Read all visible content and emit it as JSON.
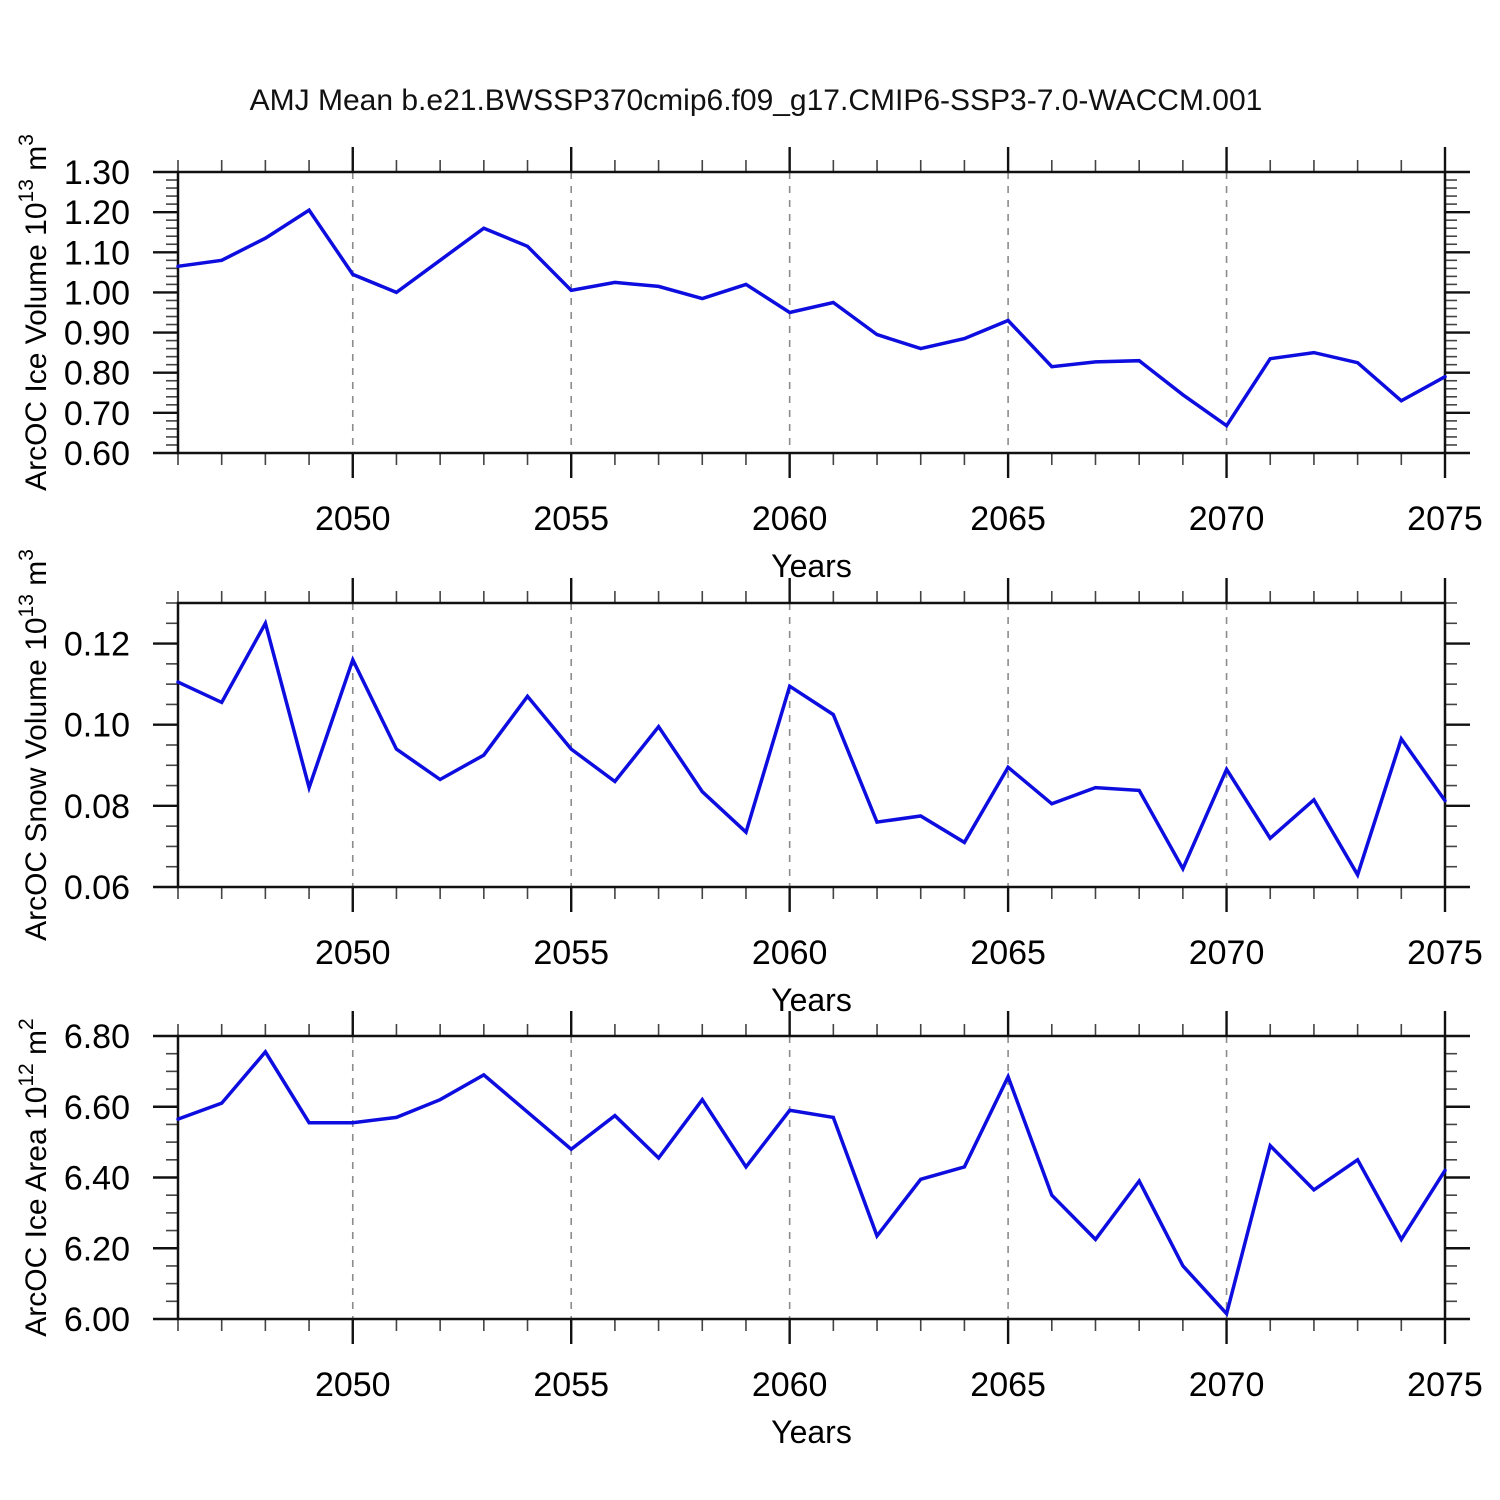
{
  "title": "AMJ Mean b.e21.BWSSP370cmip6.f09_g17.CMIP6-SSP3-7.0-WACCM.001",
  "xlabel": "Years",
  "colors": {
    "line": "#0d0de0",
    "axis": "#111111",
    "minor_tick": "#444444",
    "grid": "#8c8c8c",
    "text": "#000000"
  },
  "x_tick_labels": [
    "2050",
    "2055",
    "2060",
    "2065",
    "2070",
    "2075"
  ],
  "x_tick_values": [
    2050,
    2055,
    2060,
    2065,
    2070,
    2075
  ],
  "gridline_years": [
    2050,
    2055,
    2060,
    2065,
    2070
  ],
  "chart_data": [
    {
      "type": "line",
      "name": "arcoc-ice-volume",
      "ylabel_prefix": "ArcOC Ice Volume 10",
      "ylabel_exp": "13",
      "ylabel_unit": " m",
      "ylabel_unit_exp": "3",
      "xlabel": "Years",
      "x": [
        2046,
        2047,
        2048,
        2049,
        2050,
        2051,
        2052,
        2053,
        2054,
        2055,
        2056,
        2057,
        2058,
        2059,
        2060,
        2061,
        2062,
        2063,
        2064,
        2065,
        2066,
        2067,
        2068,
        2069,
        2070,
        2071,
        2072,
        2073,
        2074,
        2075
      ],
      "values": [
        1.065,
        1.08,
        1.135,
        1.205,
        1.045,
        1.0,
        1.08,
        1.16,
        1.115,
        1.005,
        1.025,
        1.015,
        0.985,
        1.02,
        0.95,
        0.975,
        0.895,
        0.86,
        0.885,
        0.93,
        0.815,
        0.827,
        0.83,
        0.745,
        0.668,
        0.835,
        0.85,
        0.825,
        0.73,
        0.79
      ],
      "ylim": [
        0.6,
        1.3
      ],
      "ytick_values": [
        0.6,
        0.7,
        0.8,
        0.9,
        1.0,
        1.1,
        1.2,
        1.3
      ],
      "ytick_labels": [
        "0.60",
        "0.70",
        "0.80",
        "0.90",
        "1.00",
        "1.10",
        "1.20",
        "1.30"
      ],
      "yminor_step": 0.02,
      "xlim": [
        2046,
        2075
      ]
    },
    {
      "type": "line",
      "name": "arcoc-snow-volume",
      "ylabel_prefix": "ArcOC Snow Volume 10",
      "ylabel_exp": "13",
      "ylabel_unit": " m",
      "ylabel_unit_exp": "3",
      "xlabel": "Years",
      "x": [
        2046,
        2047,
        2048,
        2049,
        2050,
        2051,
        2052,
        2053,
        2054,
        2055,
        2056,
        2057,
        2058,
        2059,
        2060,
        2061,
        2062,
        2063,
        2064,
        2065,
        2066,
        2067,
        2068,
        2069,
        2070,
        2071,
        2072,
        2073,
        2074,
        2075
      ],
      "values": [
        0.1105,
        0.1055,
        0.125,
        0.0845,
        0.116,
        0.094,
        0.0865,
        0.0925,
        0.107,
        0.094,
        0.086,
        0.0995,
        0.0835,
        0.0735,
        0.1095,
        0.1025,
        0.076,
        0.0775,
        0.071,
        0.0895,
        0.0805,
        0.0845,
        0.0838,
        0.0645,
        0.089,
        0.072,
        0.0815,
        0.063,
        0.0965,
        0.0813
      ],
      "ylim": [
        0.06,
        0.13
      ],
      "ytick_values": [
        0.06,
        0.08,
        0.1,
        0.12
      ],
      "ytick_labels": [
        "0.06",
        "0.08",
        "0.10",
        "0.12"
      ],
      "yminor_step": 0.005,
      "xlim": [
        2046,
        2075
      ]
    },
    {
      "type": "line",
      "name": "arcoc-ice-area",
      "ylabel_prefix": "ArcOC Ice Area 10",
      "ylabel_exp": "12",
      "ylabel_unit": " m",
      "ylabel_unit_exp": "2",
      "xlabel": "Years",
      "x": [
        2046,
        2047,
        2048,
        2049,
        2050,
        2051,
        2052,
        2053,
        2054,
        2055,
        2056,
        2057,
        2058,
        2059,
        2060,
        2061,
        2062,
        2063,
        2064,
        2065,
        2066,
        2067,
        2068,
        2069,
        2070,
        2071,
        2072,
        2073,
        2074,
        2075
      ],
      "values": [
        6.565,
        6.61,
        6.755,
        6.555,
        6.555,
        6.57,
        6.62,
        6.69,
        6.585,
        6.48,
        6.575,
        6.455,
        6.62,
        6.43,
        6.59,
        6.57,
        6.235,
        6.395,
        6.43,
        6.685,
        6.35,
        6.225,
        6.39,
        6.15,
        6.015,
        6.49,
        6.365,
        6.45,
        6.225,
        6.42
      ],
      "ylim": [
        6.0,
        6.8
      ],
      "ytick_values": [
        6.0,
        6.2,
        6.4,
        6.6,
        6.8
      ],
      "ytick_labels": [
        "6.00",
        "6.20",
        "6.40",
        "6.60",
        "6.80"
      ],
      "yminor_step": 0.05,
      "xlim": [
        2046,
        2075
      ]
    }
  ]
}
